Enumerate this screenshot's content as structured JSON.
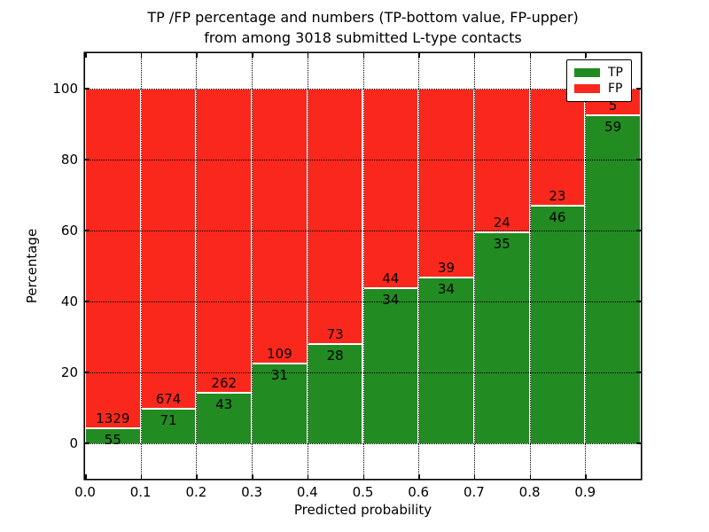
{
  "chart_data": {
    "type": "bar",
    "stacked": true,
    "title_lines": [
      "TP /FP percentage and numbers (TP-bottom value, FP-upper)",
      "from among 3018 submitted L-type contacts"
    ],
    "xlabel": "Predicted probability",
    "ylabel": "Percentage",
    "xlim": [
      0.0,
      1.0
    ],
    "ylim": [
      -10,
      110
    ],
    "x_bin_width": 0.1,
    "grid": true,
    "x_tick_values": [
      0.0,
      0.1,
      0.2,
      0.3,
      0.4,
      0.5,
      0.6,
      0.7,
      0.8,
      0.9
    ],
    "x_tick_labels": [
      "0.0",
      "0.1",
      "0.2",
      "0.3",
      "0.4",
      "0.5",
      "0.6",
      "0.7",
      "0.8",
      "0.9"
    ],
    "y_tick_values": [
      0,
      20,
      40,
      60,
      80,
      100
    ],
    "y_tick_labels": [
      "0",
      "20",
      "40",
      "60",
      "80",
      "100"
    ],
    "bins": [
      {
        "x_start": 0.0,
        "tp": 55,
        "fp": 1329,
        "tp_pct": 3.97
      },
      {
        "x_start": 0.1,
        "tp": 71,
        "fp": 674,
        "tp_pct": 9.53
      },
      {
        "x_start": 0.2,
        "tp": 43,
        "fp": 262,
        "tp_pct": 14.1
      },
      {
        "x_start": 0.3,
        "tp": 31,
        "fp": 109,
        "tp_pct": 22.14
      },
      {
        "x_start": 0.4,
        "tp": 28,
        "fp": 73,
        "tp_pct": 27.72
      },
      {
        "x_start": 0.5,
        "tp": 34,
        "fp": 44,
        "tp_pct": 43.59
      },
      {
        "x_start": 0.6,
        "tp": 34,
        "fp": 39,
        "tp_pct": 46.58
      },
      {
        "x_start": 0.7,
        "tp": 35,
        "fp": 24,
        "tp_pct": 59.32
      },
      {
        "x_start": 0.8,
        "tp": 46,
        "fp": 23,
        "tp_pct": 66.67
      },
      {
        "x_start": 0.9,
        "tp": 59,
        "fp": 5,
        "tp_pct": 92.19
      }
    ],
    "legend": {
      "position": "upper right",
      "entries": [
        {
          "label": "TP",
          "color": "#228b22"
        },
        {
          "label": "FP",
          "color": "#fa281c"
        }
      ]
    },
    "colors": {
      "tp": "#228b22",
      "fp": "#fa281c",
      "bar_edge": "#ffffff",
      "grid": "#000000",
      "text": "#000000",
      "background": "#ffffff"
    }
  }
}
